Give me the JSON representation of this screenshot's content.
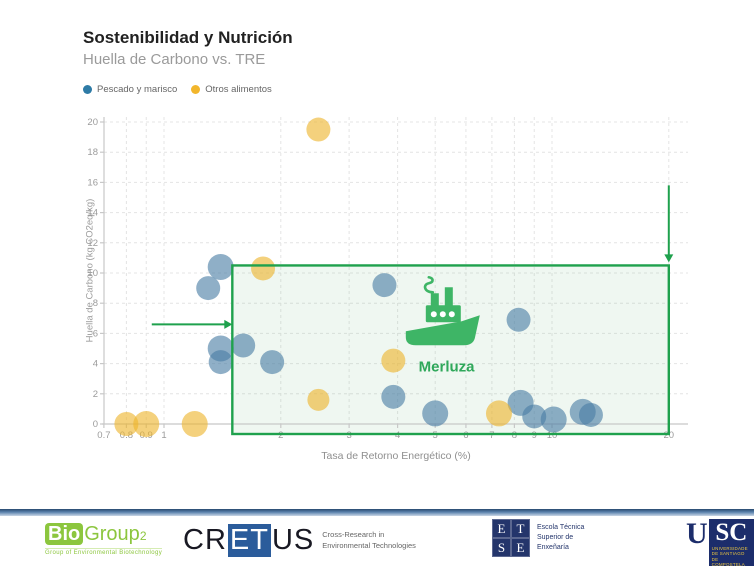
{
  "header": {
    "title": "Sostenibilidad y Nutrición",
    "subtitle": "Huella de Carbono vs. TRE"
  },
  "legend": {
    "items": [
      {
        "label": "Pescado y marisco",
        "color": "#2e7ba6"
      },
      {
        "label": "Otros alimentos",
        "color": "#f2b62c"
      }
    ]
  },
  "chart_data": {
    "type": "scatter",
    "title": "Sostenibilidad y Nutrición",
    "subtitle": "Huella de Carbono vs. TRE",
    "xlabel": "Tasa de Retorno Energético (%)",
    "ylabel": "Huella de Carbono (kg CO2eq/kg)",
    "x_scale": "log",
    "grid": true,
    "x_ticks": [
      0.7,
      0.8,
      0.9,
      1,
      2,
      3,
      4,
      5,
      6,
      7,
      8,
      9,
      10,
      20
    ],
    "y_ticks": [
      0,
      2,
      4,
      6,
      8,
      10,
      12,
      14,
      16,
      18,
      20
    ],
    "xlim": [
      0.7,
      23
    ],
    "ylim": [
      0,
      20.5
    ],
    "series": [
      {
        "name": "Pescado y marisco",
        "color": "#4a7ea4",
        "points": [
          [
            1.4,
            10.4,
            13
          ],
          [
            1.3,
            9.0,
            12
          ],
          [
            3.7,
            9.2,
            12
          ],
          [
            1.6,
            5.2,
            12
          ],
          [
            1.4,
            5.0,
            13
          ],
          [
            1.4,
            4.1,
            12
          ],
          [
            1.9,
            4.1,
            12
          ],
          [
            8.2,
            6.9,
            12
          ],
          [
            3.9,
            1.8,
            12
          ],
          [
            5.0,
            0.7,
            13
          ],
          [
            8.3,
            1.4,
            13
          ],
          [
            9.0,
            0.5,
            12
          ],
          [
            10.1,
            0.3,
            13
          ],
          [
            12.0,
            0.8,
            13
          ],
          [
            12.6,
            0.6,
            12
          ]
        ]
      },
      {
        "name": "Otros alimentos",
        "color": "#edb42d",
        "points": [
          [
            2.5,
            19.5,
            12
          ],
          [
            1.8,
            10.3,
            12
          ],
          [
            3.9,
            4.2,
            12
          ],
          [
            2.5,
            1.6,
            11
          ],
          [
            7.3,
            0.7,
            13
          ],
          [
            0.8,
            0,
            12
          ],
          [
            0.9,
            0,
            13
          ],
          [
            1.2,
            0,
            13
          ]
        ]
      }
    ],
    "annotation": {
      "label": "Merluza",
      "label_color": "#2fa85a",
      "icon": "ship",
      "icon_color": "#3eb566",
      "icon_at": [
        5.2,
        7.4
      ],
      "label_at": [
        5.35,
        3.8
      ],
      "box": {
        "x1": 1.5,
        "x2": 20,
        "y1": 0,
        "y2": 10.5,
        "color": "#1fa14d"
      },
      "arrows": [
        {
          "dir": "right",
          "y": 6.6,
          "x_from": 0.93,
          "x_to": 1.5
        },
        {
          "dir": "down",
          "x": 20,
          "y_from": 15.8,
          "y_to": 10.7
        }
      ]
    }
  },
  "footer": {
    "biogroup": {
      "bio": "Bio",
      "group": "Group",
      "sub": "2",
      "tagline": "Group of Environmental Biotechnology"
    },
    "cretus": {
      "pre": "CR",
      "mid": "ET",
      "post": "US",
      "desc_line1": "Cross-Research in",
      "desc_line2": "Environmental Technologies"
    },
    "etse": {
      "letters": [
        "E",
        "T",
        "S",
        "E"
      ],
      "line1": "Escola Técnica",
      "line2": "Superior de",
      "line3": "Enxeñaría"
    },
    "usc": {
      "u": "U",
      "sc": "SC",
      "line1": "UNIVERSIDADE",
      "line2": "DE SANTIAGO",
      "line3": "DE COMPOSTELA"
    }
  }
}
